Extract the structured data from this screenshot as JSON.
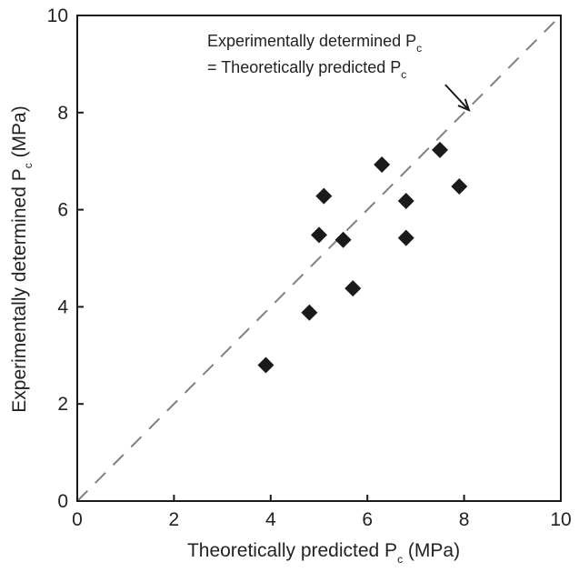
{
  "chart_data": {
    "type": "scatter",
    "xlabel": {
      "pre": "Theoretically predicted P",
      "sub": "c",
      "post": " (MPa)"
    },
    "ylabel": {
      "pre": "Experimentally determined P",
      "sub": "c",
      "post": " (MPa)"
    },
    "xlim": [
      0,
      10
    ],
    "ylim": [
      0,
      10
    ],
    "xticks": [
      "0",
      "2",
      "4",
      "6",
      "8",
      "10"
    ],
    "yticks": [
      "0",
      "2",
      "4",
      "6",
      "8",
      "10"
    ],
    "grid": false,
    "marker": "diamond",
    "marker_color": "#1a1a1a",
    "reference_line": {
      "style": "dashed",
      "color": "#808080",
      "from": [
        0,
        0
      ],
      "to": [
        10,
        10
      ]
    },
    "annotation": {
      "line1": {
        "pre": "Experimentally determined P",
        "sub": "c"
      },
      "line2": {
        "pre": "= Theoretically predicted P",
        "sub": "c"
      },
      "arrow_to": [
        8.1,
        8.05
      ]
    },
    "points": [
      {
        "x": 3.9,
        "y": 2.8
      },
      {
        "x": 4.8,
        "y": 3.88
      },
      {
        "x": 5.0,
        "y": 5.48
      },
      {
        "x": 5.1,
        "y": 6.28
      },
      {
        "x": 5.5,
        "y": 5.38
      },
      {
        "x": 5.7,
        "y": 4.38
      },
      {
        "x": 6.3,
        "y": 6.93
      },
      {
        "x": 6.8,
        "y": 6.18
      },
      {
        "x": 6.8,
        "y": 5.42
      },
      {
        "x": 7.5,
        "y": 7.23
      },
      {
        "x": 7.9,
        "y": 6.48
      }
    ]
  }
}
